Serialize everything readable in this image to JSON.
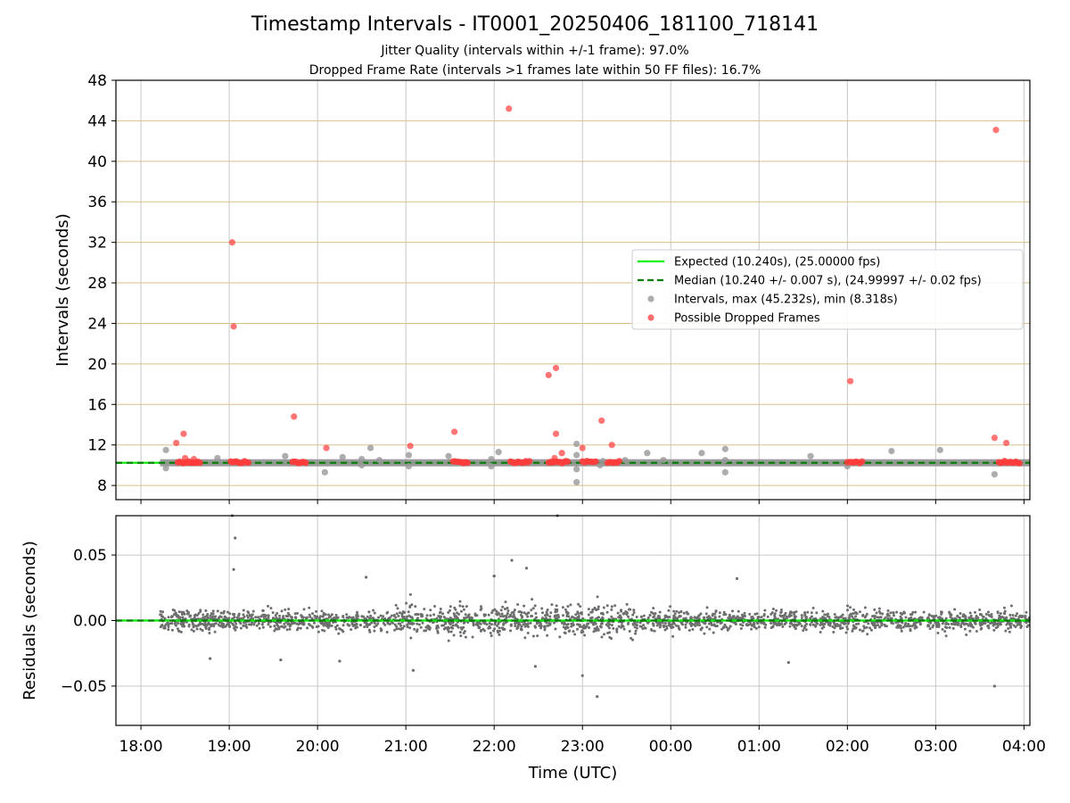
{
  "title": "Timestamp Intervals - IT0001_20250406_181100_718141",
  "subtitle_1": "Jitter Quality (intervals within +/-1 frame): 97.0%",
  "subtitle_2": "Dropped Frame Rate (intervals >1 frames late within 50 FF files): 16.7%",
  "colors": {
    "expected": "#00ee00",
    "median": "#007a00",
    "intervals": "#999999",
    "dropped": "#ff3b3b",
    "residuals": "#6e6e6e",
    "grid": "#c8c8c8",
    "hgrid_top": "#d9c089"
  },
  "chart_data": [
    {
      "type": "scatter",
      "panel": "intervals",
      "ylabel": "Intervals (seconds)",
      "xlabel": "",
      "xlim": [
        "17:43",
        "04:04"
      ],
      "ylim": [
        6.6,
        48
      ],
      "y_ticks": [
        8,
        12,
        16,
        20,
        24,
        28,
        32,
        36,
        40,
        44,
        48
      ],
      "x_ticks": [
        "18:00",
        "19:00",
        "20:00",
        "21:00",
        "22:00",
        "23:00",
        "00:00",
        "01:00",
        "02:00",
        "03:00",
        "04:00"
      ],
      "grid": true,
      "legend_position": "right",
      "expected_interval": 10.24,
      "median_interval": 10.24,
      "legend": [
        {
          "label": "Expected (10.240s), (25.00000 fps)",
          "kind": "solid-line",
          "color_key": "expected"
        },
        {
          "label": "Median (10.240 +/- 0.007 s), (24.99997 +/- 0.02 fps)",
          "kind": "dashed-line",
          "color_key": "median"
        },
        {
          "label": "Intervals, max (45.232s), min (8.318s)",
          "kind": "dot",
          "color_key": "intervals"
        },
        {
          "label": "Possible Dropped Frames",
          "kind": "dot",
          "color_key": "dropped"
        }
      ],
      "series": [
        {
          "name": "Intervals, max (45.232s), min (8.318s)",
          "points": [
            [
              "18:17",
              11.5
            ],
            [
              "18:17",
              9.7
            ],
            [
              "18:52",
              10.7
            ],
            [
              "19:38",
              10.9
            ],
            [
              "20:05",
              9.3
            ],
            [
              "20:17",
              10.8
            ],
            [
              "20:30",
              10.6
            ],
            [
              "20:30",
              10.0
            ],
            [
              "20:36",
              11.7
            ],
            [
              "20:42",
              10.5
            ],
            [
              "21:02",
              11.0
            ],
            [
              "21:02",
              9.9
            ],
            [
              "21:29",
              10.9
            ],
            [
              "21:58",
              10.6
            ],
            [
              "21:58",
              9.9
            ],
            [
              "22:03",
              11.3
            ],
            [
              "22:38",
              10.2
            ],
            [
              "22:56",
              12.1
            ],
            [
              "22:56",
              11.0
            ],
            [
              "22:56",
              9.6
            ],
            [
              "22:56",
              8.32
            ],
            [
              "23:12",
              10.0
            ],
            [
              "23:14",
              10.4
            ],
            [
              "23:29",
              10.5
            ],
            [
              "23:44",
              11.2
            ],
            [
              "23:55",
              10.5
            ],
            [
              "00:21",
              11.2
            ],
            [
              "00:37",
              11.6
            ],
            [
              "00:37",
              9.3
            ],
            [
              "00:37",
              10.5
            ],
            [
              "01:35",
              10.9
            ],
            [
              "02:00",
              9.9
            ],
            [
              "02:30",
              11.4
            ],
            [
              "03:03",
              11.5
            ],
            [
              "03:40",
              9.1
            ]
          ]
        },
        {
          "name": "Possible Dropped Frames",
          "points": [
            [
              "18:24",
              12.2
            ],
            [
              "18:29",
              13.1
            ],
            [
              "19:02",
              32.0
            ],
            [
              "19:03",
              23.7
            ],
            [
              "19:44",
              14.8
            ],
            [
              "20:06",
              11.7
            ],
            [
              "21:03",
              11.9
            ],
            [
              "21:33",
              13.3
            ],
            [
              "22:10",
              45.2
            ],
            [
              "22:37",
              18.9
            ],
            [
              "22:42",
              19.6
            ],
            [
              "22:42",
              13.1
            ],
            [
              "22:46",
              11.2
            ],
            [
              "23:00",
              11.7
            ],
            [
              "23:13",
              14.4
            ],
            [
              "23:20",
              12.0
            ],
            [
              "02:02",
              18.3
            ],
            [
              "03:40",
              12.7
            ],
            [
              "03:41",
              43.1
            ],
            [
              "03:48",
              12.2
            ],
            [
              "18:30",
              10.7
            ],
            [
              "18:36",
              10.6
            ],
            [
              "22:41",
              10.7
            ]
          ],
          "clusters": [
            [
              "18:25",
              "18:40"
            ],
            [
              "19:01",
              "19:13"
            ],
            [
              "19:43",
              "19:52"
            ],
            [
              "21:32",
              "21:42"
            ],
            [
              "22:11",
              "22:24"
            ],
            [
              "22:37",
              "22:50"
            ],
            [
              "23:00",
              "23:09"
            ],
            [
              "23:17",
              "23:25"
            ],
            [
              "02:00",
              "02:10"
            ],
            [
              "03:43",
              "03:57"
            ]
          ],
          "cluster_value": 10.3
        }
      ]
    },
    {
      "type": "scatter",
      "panel": "residuals",
      "ylabel": "Residuals (seconds)",
      "xlabel": "Time (UTC)",
      "xlim": [
        "17:43",
        "04:04"
      ],
      "ylim": [
        -0.08,
        0.08
      ],
      "y_ticks": [
        0.05,
        0.0,
        -0.05
      ],
      "y_tick_labels": [
        "0.05",
        "0.00",
        "−0.05"
      ],
      "x_ticks": [
        "18:00",
        "19:00",
        "20:00",
        "21:00",
        "22:00",
        "23:00",
        "00:00",
        "01:00",
        "02:00",
        "03:00",
        "04:00"
      ],
      "grid": true,
      "zero_line": 0.0,
      "series": [
        {
          "name": "Residuals",
          "x_range": [
            "18:13",
            "04:04"
          ],
          "typical_spread_sd": 0.01,
          "points": [
            [
              "19:02",
              0.08
            ],
            [
              "19:04",
              0.063
            ],
            [
              "19:03",
              0.039
            ],
            [
              "22:43",
              0.08
            ],
            [
              "22:00",
              0.034
            ],
            [
              "22:12",
              0.046
            ],
            [
              "22:22",
              0.04
            ],
            [
              "22:00",
              0.034
            ],
            [
              "23:10",
              -0.058
            ],
            [
              "23:00",
              -0.042
            ],
            [
              "20:33",
              0.033
            ],
            [
              "21:05",
              -0.038
            ],
            [
              "03:40",
              -0.05
            ],
            [
              "22:28",
              -0.035
            ],
            [
              "00:45",
              0.032
            ],
            [
              "01:20",
              -0.032
            ],
            [
              "18:47",
              -0.029
            ],
            [
              "19:35",
              -0.03
            ],
            [
              "20:15",
              -0.031
            ]
          ]
        }
      ]
    }
  ]
}
